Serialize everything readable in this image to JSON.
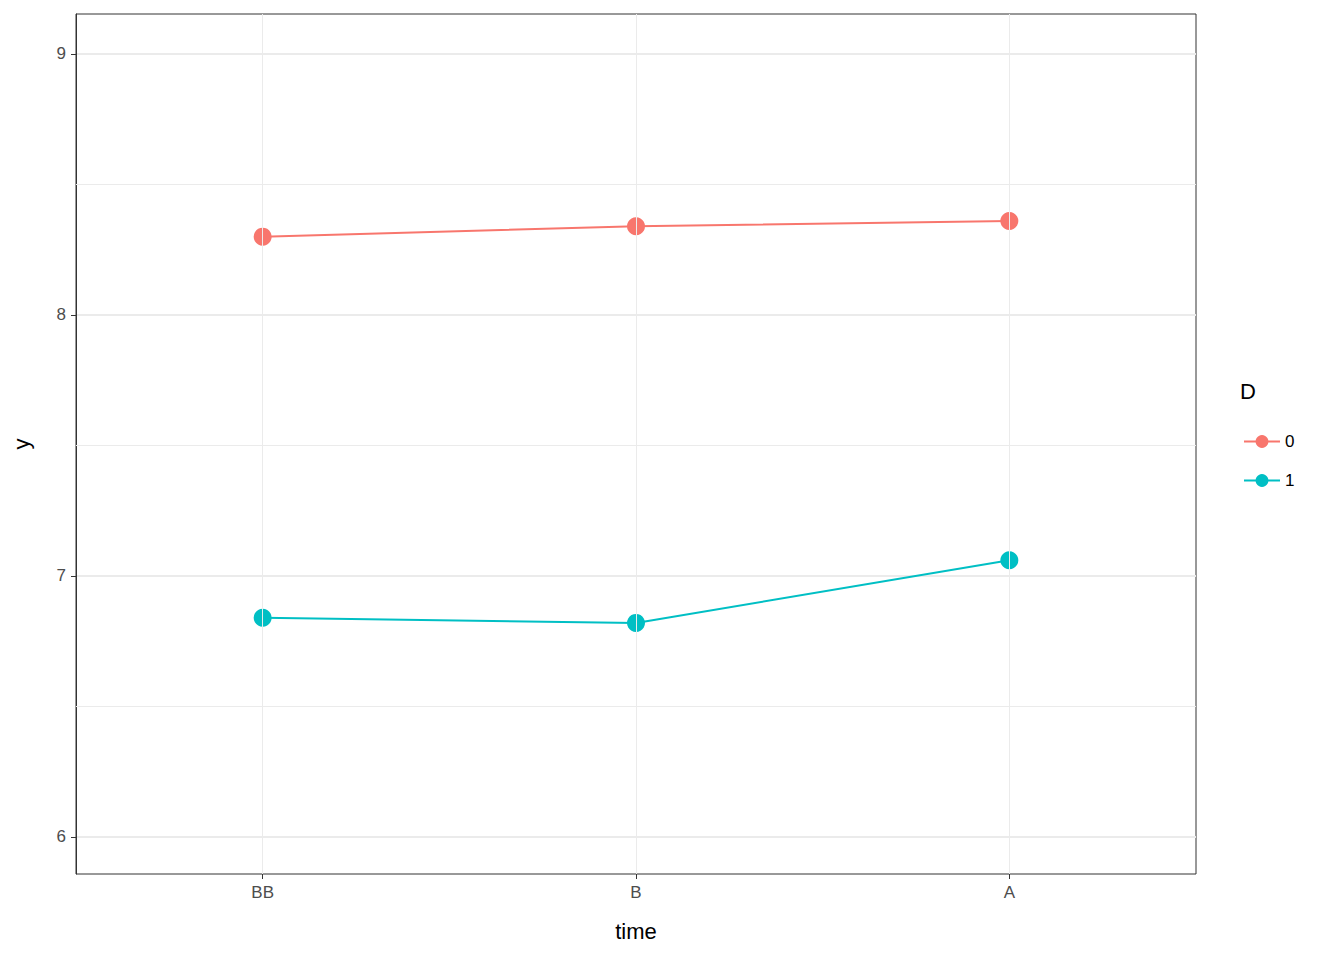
{
  "chart_data": {
    "type": "line",
    "x_label": "time",
    "y_label": "y",
    "categories": [
      "BB",
      "B",
      "A"
    ],
    "series": [
      {
        "name": "0",
        "color": "#F8766D",
        "values": [
          8.3,
          8.34,
          8.36
        ],
        "marker": "circle"
      },
      {
        "name": "1",
        "color": "#00BFC4",
        "values": [
          6.84,
          6.82,
          7.06
        ],
        "marker": "circle"
      }
    ],
    "ylim": [
      5.858,
      9.153
    ],
    "yticks": [
      6,
      7,
      8,
      9
    ],
    "grid": true,
    "legend": "right",
    "legend_title": "D"
  }
}
